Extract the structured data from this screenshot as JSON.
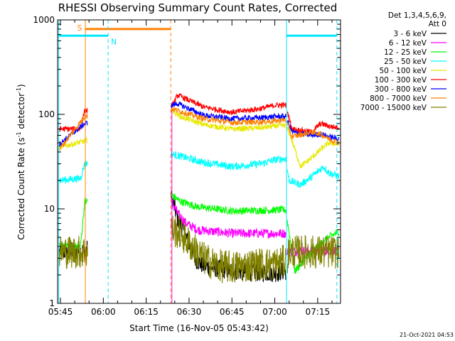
{
  "chart_data": {
    "type": "line",
    "title": "RHESSI Observing Summary Count Rates, Corrected",
    "xlabel": "Start Time (16-Nov-05 05:43:42)",
    "ylabel_main": "Corrected Count Rate (s",
    "ylabel_sup1": "-1",
    "ylabel_mid": " detector",
    "ylabel_sup2": "-1",
    "ylabel_end": ")",
    "yscale": "log",
    "ylim": [
      1,
      1000
    ],
    "xlim_minutes": [
      -1,
      98
    ],
    "x_ticks": [
      {
        "label": "05:45",
        "min": 0
      },
      {
        "label": "06:00",
        "min": 15
      },
      {
        "label": "06:15",
        "min": 30
      },
      {
        "label": "06:30",
        "min": 45
      },
      {
        "label": "06:45",
        "min": 60
      },
      {
        "label": "07:00",
        "min": 75
      },
      {
        "label": "07:15",
        "min": 90
      }
    ],
    "y_ticks": [
      {
        "label": "1",
        "v": 1
      },
      {
        "label": "10",
        "v": 10
      },
      {
        "label": "100",
        "v": 100
      },
      {
        "label": "1000",
        "v": 1000
      }
    ],
    "legend_header": [
      "Det 1,3,4,5,6,9,",
      "Att 0"
    ],
    "legend_placement": "right",
    "annotations": {
      "saa_label": "S",
      "night_label": "N",
      "saa_level": 800,
      "night_level": 680,
      "saa_color": "#ff8000",
      "night_color": "#00e5ff",
      "saa_start": 8.7,
      "saa_end": 38.6,
      "night_intervals": [
        [
          -0.6,
          16.7
        ],
        [
          79.1,
          96.7
        ]
      ],
      "attenuator_vline": 39.0,
      "attenuator_color": "#ff00ff"
    },
    "data_gaps_minutes": [
      [
        9.5,
        38.6
      ],
      [
        79.0,
        79.3
      ]
    ],
    "series": [
      {
        "name": "3 - 6 keV",
        "color": "#000000",
        "noise": 0.1,
        "points": [
          [
            -0.5,
            3.5
          ],
          [
            8.5,
            3.6
          ],
          [
            38.9,
            13
          ],
          [
            41,
            8
          ],
          [
            44,
            5
          ],
          [
            47,
            3
          ],
          [
            50,
            2.5
          ],
          [
            60,
            2.2
          ],
          [
            75,
            2.1
          ],
          [
            78.8,
            2.2
          ]
        ]
      },
      {
        "name": "6 - 12 keV",
        "color": "#ff00ff",
        "noise": 0.05,
        "points": [
          [
            38.9,
            12
          ],
          [
            41,
            9
          ],
          [
            44,
            7
          ],
          [
            48,
            6
          ],
          [
            60,
            5.5
          ],
          [
            75,
            5.5
          ],
          [
            78.8,
            5.5
          ],
          [
            79.4,
            3.5
          ],
          [
            84,
            3.6
          ],
          [
            97.5,
            3.6
          ]
        ]
      },
      {
        "name": "12 - 25 keV",
        "color": "#00ff00",
        "noise": 0.04,
        "points": [
          [
            -0.5,
            4
          ],
          [
            7,
            4
          ],
          [
            8.5,
            12
          ],
          [
            38.9,
            14
          ],
          [
            42,
            12
          ],
          [
            48,
            10.5
          ],
          [
            60,
            9.5
          ],
          [
            75,
            9.7
          ],
          [
            78.8,
            9.8
          ],
          [
            82,
            2.2
          ],
          [
            88,
            3.5
          ],
          [
            92,
            4.6
          ],
          [
            97.5,
            5.8
          ]
        ]
      },
      {
        "name": "25 - 50 keV",
        "color": "#00ffff",
        "noise": 0.04,
        "points": [
          [
            -0.5,
            20
          ],
          [
            7,
            21
          ],
          [
            8.5,
            30
          ],
          [
            38.9,
            38
          ],
          [
            42,
            36
          ],
          [
            50,
            31
          ],
          [
            60,
            28
          ],
          [
            70,
            30
          ],
          [
            75,
            33
          ],
          [
            78.8,
            34
          ],
          [
            80,
            20
          ],
          [
            84,
            18
          ],
          [
            88,
            22
          ],
          [
            92,
            28
          ],
          [
            94,
            24
          ],
          [
            97.5,
            22
          ]
        ]
      },
      {
        "name": "50 - 100 keV",
        "color": "#e8e800",
        "noise": 0.03,
        "points": [
          [
            -0.5,
            45
          ],
          [
            8.5,
            52
          ],
          [
            38.9,
            110
          ],
          [
            42,
            95
          ],
          [
            50,
            78
          ],
          [
            60,
            70
          ],
          [
            70,
            72
          ],
          [
            75,
            75
          ],
          [
            78.8,
            76
          ],
          [
            80,
            65
          ],
          [
            84,
            28
          ],
          [
            88,
            35
          ],
          [
            92,
            45
          ],
          [
            94,
            50
          ],
          [
            97.5,
            48
          ]
        ]
      },
      {
        "name": "100 - 300 keV",
        "color": "#ff0000",
        "noise": 0.03,
        "points": [
          [
            -0.5,
            70
          ],
          [
            7,
            70
          ],
          [
            8.5,
            110
          ],
          [
            38.9,
            120
          ],
          [
            41,
            160
          ],
          [
            50,
            120
          ],
          [
            60,
            105
          ],
          [
            70,
            115
          ],
          [
            75,
            125
          ],
          [
            78.8,
            125
          ],
          [
            81,
            70
          ],
          [
            88,
            65
          ],
          [
            91,
            80
          ],
          [
            94,
            75
          ],
          [
            97.5,
            72
          ]
        ]
      },
      {
        "name": "300 - 800 keV",
        "color": "#0000ff",
        "noise": 0.03,
        "points": [
          [
            -0.5,
            48
          ],
          [
            8.5,
            80
          ],
          [
            38.9,
            125
          ],
          [
            41,
            130
          ],
          [
            50,
            98
          ],
          [
            60,
            90
          ],
          [
            70,
            92
          ],
          [
            75,
            95
          ],
          [
            78.8,
            95
          ],
          [
            81,
            65
          ],
          [
            88,
            60
          ],
          [
            91,
            62
          ],
          [
            94,
            58
          ],
          [
            97.5,
            55
          ]
        ]
      },
      {
        "name": "800 - 7000 keV",
        "color": "#ff8000",
        "noise": 0.03,
        "points": [
          [
            -0.5,
            42
          ],
          [
            8.5,
            95
          ],
          [
            38.9,
            115
          ],
          [
            41,
            110
          ],
          [
            50,
            90
          ],
          [
            60,
            82
          ],
          [
            70,
            83
          ],
          [
            75,
            85
          ],
          [
            78.8,
            88
          ],
          [
            81,
            58
          ],
          [
            88,
            65
          ],
          [
            91,
            62
          ],
          [
            94,
            55
          ],
          [
            97.5,
            50
          ]
        ]
      },
      {
        "name": "7000 - 15000 keV",
        "color": "#808000",
        "noise": 0.18,
        "points": [
          [
            -0.5,
            3.5
          ],
          [
            8.5,
            3.5
          ],
          [
            38.9,
            6
          ],
          [
            42,
            5.5
          ],
          [
            46,
            4
          ],
          [
            50,
            3
          ],
          [
            55,
            2.5
          ],
          [
            60,
            2.4
          ],
          [
            65,
            2.5
          ],
          [
            70,
            2.6
          ],
          [
            75,
            2.6
          ],
          [
            78.8,
            2.8
          ],
          [
            80,
            3.5
          ],
          [
            97.5,
            3.5
          ]
        ]
      }
    ]
  },
  "footer": {
    "timestamp": "21-Oct-2021 04:53"
  }
}
